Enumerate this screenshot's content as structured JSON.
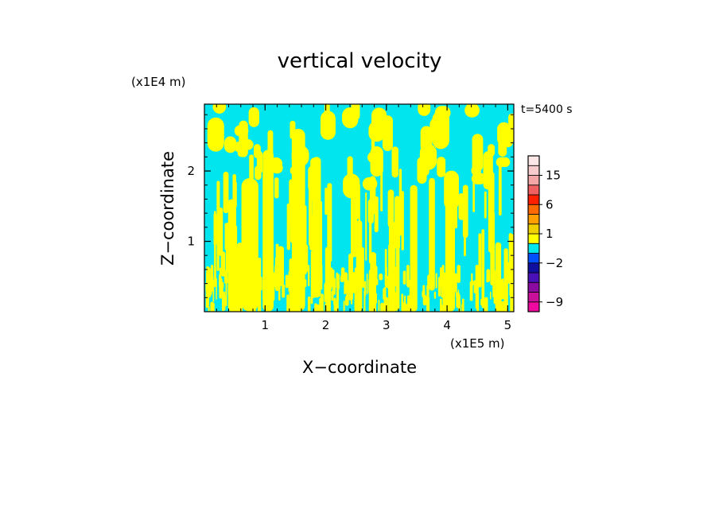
{
  "chart_data": {
    "type": "heatmap",
    "title": "vertical velocity",
    "xlabel": "X−coordinate",
    "ylabel": "Z−coordinate",
    "x_unit": "(x1E5 m)",
    "y_unit": "(x1E4 m)",
    "time_label": "t=5400 s",
    "xlim": [
      0,
      5.1
    ],
    "ylim": [
      0,
      2.95
    ],
    "x_ticks": [
      "1",
      "2",
      "3",
      "4",
      "5"
    ],
    "x_tick_values": [
      1,
      2,
      3,
      4,
      5
    ],
    "y_ticks": [
      "1",
      "2"
    ],
    "y_tick_values": [
      1,
      2
    ],
    "field_colors": {
      "negative_small": "#00e5ee",
      "positive_small": "#ffff00"
    },
    "colorbar": {
      "levels": [
        {
          "min": -12,
          "max": -9,
          "color": "#ee0a9e"
        },
        {
          "min": -9,
          "max": -6,
          "color": "#c8109a"
        },
        {
          "min": -6,
          "max": -4,
          "color": "#8b0aa0"
        },
        {
          "min": -4,
          "max": -3,
          "color": "#4a10b8"
        },
        {
          "min": -3,
          "max": -2,
          "color": "#1010a0"
        },
        {
          "min": -2,
          "max": -1,
          "color": "#0050ff"
        },
        {
          "min": -1,
          "max": 0,
          "color": "#00e5ee"
        },
        {
          "min": 0,
          "max": 1,
          "color": "#ffff00"
        },
        {
          "min": 1,
          "max": 2,
          "color": "#f0d000"
        },
        {
          "min": 2,
          "max": 3,
          "color": "#ffa000"
        },
        {
          "min": 3,
          "max": 6,
          "color": "#ff6a00"
        },
        {
          "min": 6,
          "max": 9,
          "color": "#ff2000"
        },
        {
          "min": 9,
          "max": 12,
          "color": "#f06060"
        },
        {
          "min": 12,
          "max": 15,
          "color": "#f4a6a6"
        },
        {
          "min": 15,
          "max": 18,
          "color": "#f8cccc"
        },
        {
          "min": 18,
          "max": 24,
          "color": "#fde6e6"
        }
      ],
      "tick_labels": [
        "15",
        "6",
        "1",
        "−2",
        "−9"
      ],
      "tick_values": [
        15,
        6,
        1,
        -2,
        -9
      ]
    }
  }
}
